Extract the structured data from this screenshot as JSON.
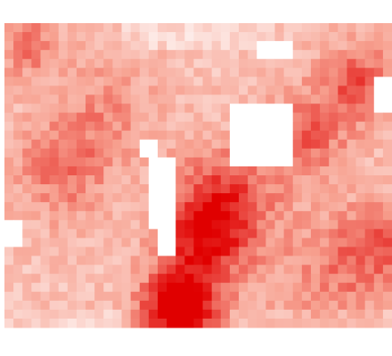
{
  "chart_data": {
    "type": "heatmap",
    "title": "",
    "xlabel": "",
    "ylabel": "",
    "grid": false,
    "legend": "none",
    "colormap": {
      "low": "#ffffff",
      "mid": "#f7a08f",
      "high": "#e00000"
    },
    "value_range": [
      0,
      1
    ],
    "rows": 34,
    "cols": 43,
    "hotspots": [
      {
        "cx": 19,
        "cy": 31.5,
        "sigma": 3.0,
        "amp": 0.85
      },
      {
        "cx": 21.5,
        "cy": 24,
        "sigma": 3.5,
        "amp": 0.5
      },
      {
        "cx": 24,
        "cy": 19,
        "sigma": 4.0,
        "amp": 0.45
      },
      {
        "cx": 33,
        "cy": 12,
        "sigma": 3.5,
        "amp": 0.35
      },
      {
        "cx": 39,
        "cy": 6,
        "sigma": 3.0,
        "amp": 0.4
      },
      {
        "cx": 6,
        "cy": 16,
        "sigma": 4.0,
        "amp": 0.3
      },
      {
        "cx": 2,
        "cy": 2,
        "sigma": 2.5,
        "amp": 0.3
      },
      {
        "cx": 11,
        "cy": 9,
        "sigma": 4.0,
        "amp": 0.2
      },
      {
        "cx": 36,
        "cy": 28,
        "sigma": 5.0,
        "amp": 0.25
      },
      {
        "cx": 41,
        "cy": 24,
        "sigma": 3.0,
        "amp": 0.3
      }
    ],
    "voids": [
      {
        "c0": 25,
        "c1": 32,
        "r0": 9,
        "r1": 16
      },
      {
        "c0": 15,
        "c1": 17,
        "r0": 13,
        "r1": 15
      },
      {
        "c0": 16,
        "c1": 19,
        "r0": 15,
        "r1": 23
      },
      {
        "c0": 17,
        "c1": 19,
        "r0": 20,
        "r1": 26
      },
      {
        "c0": 41,
        "c1": 43,
        "r0": 6,
        "r1": 10
      },
      {
        "c0": 28,
        "c1": 32,
        "r0": 2,
        "r1": 4
      },
      {
        "c0": 0,
        "c1": 2,
        "r0": 22,
        "r1": 25
      }
    ]
  }
}
